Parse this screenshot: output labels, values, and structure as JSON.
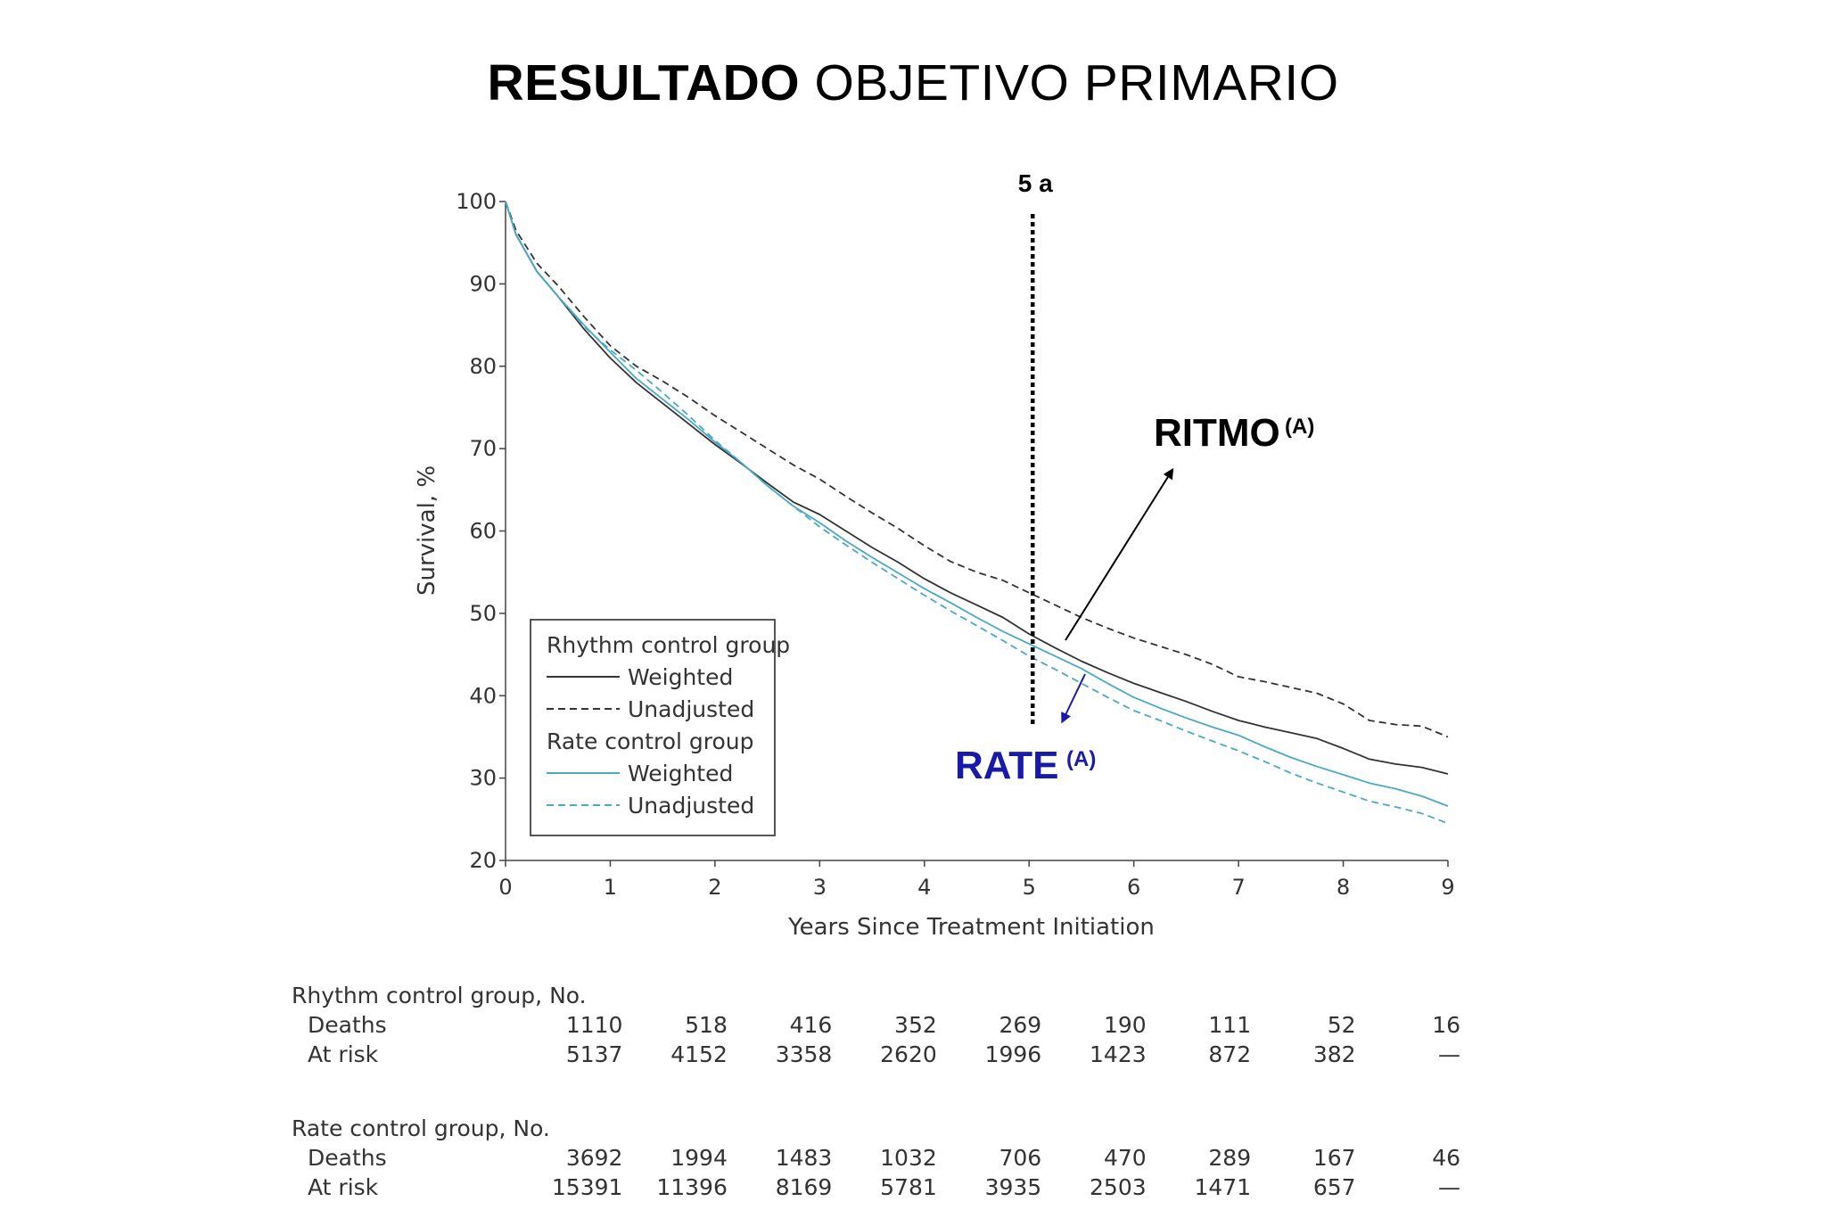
{
  "title": {
    "bold": "RESULTADO",
    "rest": " OBJETIVO PRIMARIO"
  },
  "chart_data": {
    "type": "line",
    "xlabel": "Years Since Treatment Initiation",
    "ylabel": "Survival, %",
    "xlim": [
      0,
      9
    ],
    "ylim": [
      20,
      100
    ],
    "xticks": [
      0,
      1,
      2,
      3,
      4,
      5,
      6,
      7,
      8,
      9
    ],
    "yticks": [
      20,
      30,
      40,
      50,
      60,
      70,
      80,
      90,
      100
    ],
    "grid": false,
    "legend": {
      "placement": "bottom-left",
      "groups": [
        {
          "title": "Rhythm control group",
          "entries": [
            "Weighted",
            "Unadjusted"
          ]
        },
        {
          "title": "Rate control group",
          "entries": [
            "Weighted",
            "Unadjusted"
          ]
        }
      ]
    },
    "series": [
      {
        "group": "Rhythm control group",
        "name": "Weighted",
        "color": "#333333",
        "dash": "solid",
        "x": [
          0,
          0.1,
          0.3,
          0.5,
          0.75,
          1,
          1.25,
          1.5,
          1.75,
          2,
          2.25,
          2.5,
          2.75,
          3,
          3.25,
          3.5,
          3.75,
          4,
          4.25,
          4.5,
          4.75,
          5,
          5.25,
          5.5,
          5.75,
          6,
          6.25,
          6.5,
          6.75,
          7,
          7.25,
          7.5,
          7.75,
          8,
          8.25,
          8.5,
          8.75,
          9
        ],
        "y": [
          100,
          96,
          91.5,
          88.5,
          84.5,
          81,
          78,
          75.5,
          73,
          70.5,
          68.2,
          65.8,
          63.5,
          62,
          60,
          58,
          56.2,
          54.2,
          52.5,
          51,
          49.5,
          47.5,
          45.8,
          44.2,
          42.8,
          41.5,
          40.4,
          39.3,
          38.1,
          37,
          36.2,
          35.5,
          34.8,
          33.6,
          32.3,
          31.7,
          31.3,
          30.5
        ]
      },
      {
        "group": "Rhythm control group",
        "name": "Unadjusted",
        "color": "#333333",
        "dash": "dashed",
        "x": [
          0,
          0.1,
          0.3,
          0.5,
          0.75,
          1,
          1.25,
          1.5,
          1.75,
          2,
          2.25,
          2.5,
          2.75,
          3,
          3.25,
          3.5,
          3.75,
          4,
          4.25,
          4.5,
          4.75,
          5,
          5.25,
          5.5,
          5.75,
          6,
          6.25,
          6.5,
          6.75,
          7,
          7.25,
          7.5,
          7.75,
          8,
          8.25,
          8.5,
          8.75,
          9
        ],
        "y": [
          100,
          96.5,
          92.5,
          89.8,
          86,
          82.5,
          80,
          78.2,
          76.2,
          74,
          72,
          70,
          68,
          66.3,
          64.2,
          62.2,
          60.3,
          58.2,
          56.3,
          55,
          54,
          52.5,
          51,
          49.5,
          48.2,
          47,
          46,
          45,
          43.8,
          42.3,
          41.7,
          41,
          40.3,
          39,
          37,
          36.5,
          36.3,
          35
        ]
      },
      {
        "group": "Rate control group",
        "name": "Weighted",
        "color": "#4aa9c6",
        "dash": "solid",
        "x": [
          0,
          0.1,
          0.3,
          0.5,
          0.75,
          1,
          1.25,
          1.5,
          1.75,
          2,
          2.25,
          2.5,
          2.75,
          3,
          3.25,
          3.5,
          3.75,
          4,
          4.25,
          4.5,
          4.75,
          5,
          5.25,
          5.5,
          5.75,
          6,
          6.25,
          6.5,
          6.75,
          7,
          7.25,
          7.5,
          7.75,
          8,
          8.25,
          8.5,
          8.75,
          9
        ],
        "y": [
          100,
          96,
          91.5,
          88.5,
          85,
          81.7,
          78.5,
          76,
          73.5,
          70.8,
          68.3,
          65.5,
          63,
          61,
          58.8,
          56.8,
          54.9,
          53,
          51.3,
          49.5,
          47.8,
          46.3,
          44.8,
          43.3,
          41.5,
          39.8,
          38.5,
          37.3,
          36.2,
          35.2,
          33.8,
          32.5,
          31.4,
          30.4,
          29.4,
          28.7,
          27.8,
          26.6
        ]
      },
      {
        "group": "Rate control group",
        "name": "Unadjusted",
        "color": "#4aa9c6",
        "dash": "dashed",
        "x": [
          0,
          0.1,
          0.3,
          0.5,
          0.75,
          1,
          1.25,
          1.5,
          1.75,
          2,
          2.25,
          2.5,
          2.75,
          3,
          3.25,
          3.5,
          3.75,
          4,
          4.25,
          4.5,
          4.75,
          5,
          5.25,
          5.5,
          5.75,
          6,
          6.25,
          6.5,
          6.75,
          7,
          7.25,
          7.5,
          7.75,
          8,
          8.25,
          8.5,
          8.75,
          9
        ],
        "y": [
          100,
          96,
          91.5,
          88.5,
          84.8,
          82,
          79.5,
          76.8,
          74,
          71,
          68.3,
          65.5,
          63,
          60.5,
          58.3,
          56.2,
          54.2,
          52.2,
          50.3,
          48.5,
          46.7,
          44.8,
          43.2,
          41.5,
          39.8,
          38.2,
          37,
          35.7,
          34.5,
          33.3,
          32,
          30.6,
          29.4,
          28.3,
          27.2,
          26.5,
          25.7,
          24.5
        ]
      }
    ],
    "reference_line": {
      "x": 5,
      "label": "5 a"
    },
    "annotations": [
      {
        "text": "RITMO",
        "sup": "(A)",
        "color": "#000000"
      },
      {
        "text": "RATE",
        "sup": "(A)",
        "color": "#1a1aa8"
      }
    ],
    "risk_table": {
      "columns": [
        "0",
        "1",
        "2",
        "3",
        "4",
        "5",
        "6",
        "7",
        "8",
        "9"
      ],
      "groups": [
        {
          "header": "Rhythm control group, No.",
          "rows": [
            {
              "label": "Deaths",
              "values": [
                "1110",
                "518",
                "416",
                "352",
                "269",
                "190",
                "111",
                "52",
                "16"
              ]
            },
            {
              "label": "At risk",
              "values": [
                "5137",
                "4152",
                "3358",
                "2620",
                "1996",
                "1423",
                "872",
                "382",
                "—"
              ]
            }
          ]
        },
        {
          "header": "Rate control group, No.",
          "rows": [
            {
              "label": "Deaths",
              "values": [
                "3692",
                "1994",
                "1483",
                "1032",
                "706",
                "470",
                "289",
                "167",
                "46"
              ]
            },
            {
              "label": "At risk",
              "values": [
                "15391",
                "11396",
                "8169",
                "5781",
                "3935",
                "2503",
                "1471",
                "657",
                "—"
              ]
            }
          ]
        }
      ]
    }
  }
}
